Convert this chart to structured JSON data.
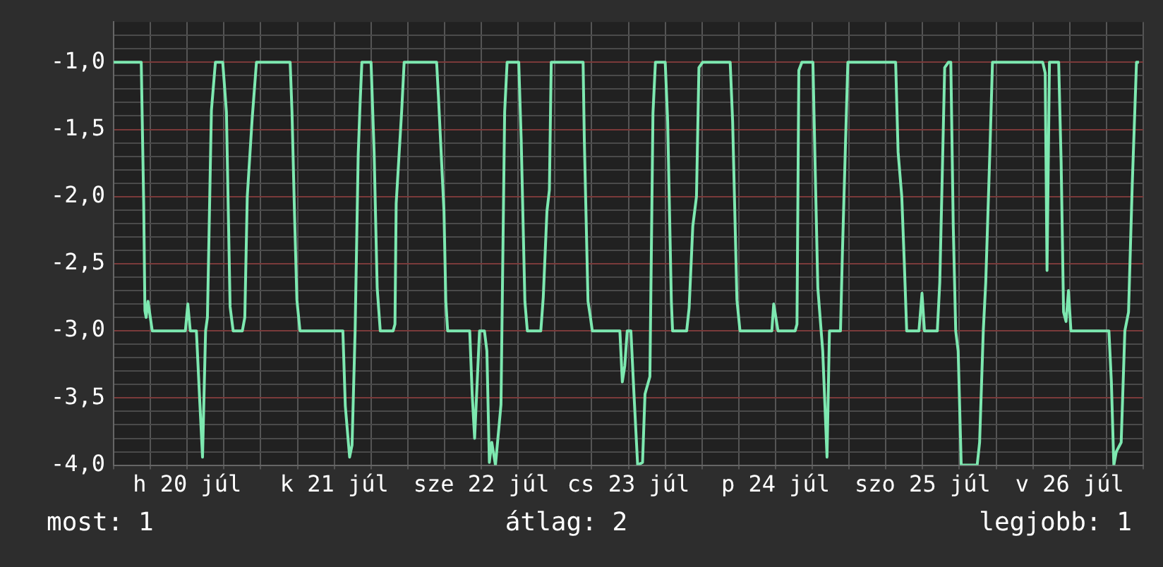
{
  "chart_data": {
    "type": "line",
    "marker": "none",
    "line_style": "solid",
    "grid": true,
    "legend": false,
    "xlim": [
      "--07-20T00:00",
      "--07-27T00:00"
    ],
    "xticks": [
      {
        "value": "--07-20T00:00",
        "label": null
      },
      {
        "value": "--07-20T06:00",
        "label": null
      },
      {
        "value": "--07-20T12:00",
        "label": "h 20 júl"
      },
      {
        "value": "--07-20T18:00",
        "label": null
      },
      {
        "value": "--07-21T00:00",
        "label": null
      },
      {
        "value": "--07-21T06:00",
        "label": null
      },
      {
        "value": "--07-21T12:00",
        "label": "k 21 júl"
      },
      {
        "value": "--07-21T18:00",
        "label": null
      },
      {
        "value": "--07-22T00:00",
        "label": null
      },
      {
        "value": "--07-22T06:00",
        "label": null
      },
      {
        "value": "--07-22T12:00",
        "label": "sze 22 júl"
      },
      {
        "value": "--07-22T18:00",
        "label": null
      },
      {
        "value": "--07-23T00:00",
        "label": null
      },
      {
        "value": "--07-23T06:00",
        "label": null
      },
      {
        "value": "--07-23T12:00",
        "label": "cs 23 júl"
      },
      {
        "value": "--07-23T18:00",
        "label": null
      },
      {
        "value": "--07-24T00:00",
        "label": null
      },
      {
        "value": "--07-24T06:00",
        "label": null
      },
      {
        "value": "--07-24T12:00",
        "label": "p 24 júl"
      },
      {
        "value": "--07-24T18:00",
        "label": null
      },
      {
        "value": "--07-25T00:00",
        "label": null
      },
      {
        "value": "--07-25T06:00",
        "label": null
      },
      {
        "value": "--07-25T12:00",
        "label": "szo 25 júl"
      },
      {
        "value": "--07-25T18:00",
        "label": null
      },
      {
        "value": "--07-26T00:00",
        "label": null
      },
      {
        "value": "--07-26T06:00",
        "label": null
      },
      {
        "value": "--07-26T12:00",
        "label": "v 26 júl"
      },
      {
        "value": "--07-26T18:00",
        "label": null
      },
      {
        "value": "--07-27T00:00",
        "label": null
      }
    ],
    "ylim": [
      -4,
      -0.7
    ],
    "yticks": [
      {
        "value": -4,
        "label": "-4,0"
      },
      {
        "value": -3.9,
        "label": null
      },
      {
        "value": -3.8,
        "label": null
      },
      {
        "value": -3.7,
        "label": null
      },
      {
        "value": -3.6,
        "label": null
      },
      {
        "value": -3.5,
        "label": "-3,5"
      },
      {
        "value": -3.4,
        "label": null
      },
      {
        "value": -3.3,
        "label": null
      },
      {
        "value": -3.2,
        "label": null
      },
      {
        "value": -3.1,
        "label": null
      },
      {
        "value": -3,
        "label": "-3,0"
      },
      {
        "value": -2.9,
        "label": null
      },
      {
        "value": -2.8,
        "label": null
      },
      {
        "value": -2.7,
        "label": null
      },
      {
        "value": -2.6,
        "label": null
      },
      {
        "value": -2.5,
        "label": "-2,5"
      },
      {
        "value": -2.4,
        "label": null
      },
      {
        "value": -2.3,
        "label": null
      },
      {
        "value": -2.2,
        "label": null
      },
      {
        "value": -2.1,
        "label": null
      },
      {
        "value": -2,
        "label": "-2,0"
      },
      {
        "value": -1.9,
        "label": null
      },
      {
        "value": -1.8,
        "label": null
      },
      {
        "value": -1.7,
        "label": null
      },
      {
        "value": -1.6,
        "label": null
      },
      {
        "value": -1.5,
        "label": "-1,5"
      },
      {
        "value": -1.4,
        "label": null
      },
      {
        "value": -1.3,
        "label": null
      },
      {
        "value": -1.2,
        "label": null
      },
      {
        "value": -1.1,
        "label": null
      },
      {
        "value": -1,
        "label": "-1,0"
      },
      {
        "value": -0.9,
        "label": null
      },
      {
        "value": -0.8,
        "label": null
      }
    ],
    "x": [
      "--07-20T00:00",
      "--07-20T04:30",
      "--07-20T04:54",
      "--07-20T05:06",
      "--07-20T05:18",
      "--07-20T05:36",
      "--07-20T06:18",
      "--07-20T11:42",
      "--07-20T12:06",
      "--07-20T12:30",
      "--07-20T13:30",
      "--07-20T14:00",
      "--07-20T14:30",
      "--07-20T15:00",
      "--07-20T15:18",
      "--07-20T15:57",
      "--07-20T16:36",
      "--07-20T17:48",
      "--07-20T18:24",
      "--07-20T19:00",
      "--07-20T19:30",
      "--07-20T21:00",
      "--07-20T21:24",
      "--07-20T21:48",
      "--07-20T22:36",
      "--07-20T23:18",
      "--07-21T04:48",
      "--07-21T05:06",
      "--07-21T05:30",
      "--07-21T05:54",
      "--07-21T06:24",
      "--07-21T13:24",
      "--07-21T13:48",
      "--07-21T14:30",
      "--07-21T14:54",
      "--07-21T15:24",
      "--07-21T15:54",
      "--07-21T16:12",
      "--07-21T16:30",
      "--07-21T18:00",
      "--07-21T18:30",
      "--07-21T19:00",
      "--07-21T19:30",
      "--07-21T21:36",
      "--07-21T21:54",
      "--07-21T22:06",
      "--07-21T23:00",
      "--07-21T23:24",
      "--07-22T04:42",
      "--07-22T05:00",
      "--07-22T05:54",
      "--07-22T06:12",
      "--07-22T06:30",
      "--07-22T10:06",
      "--07-22T10:30",
      "--07-22T10:54",
      "--07-22T11:42",
      "--07-22T12:30",
      "--07-22T12:54",
      "--07-22T13:18",
      "--07-22T13:42",
      "--07-22T14:18",
      "--07-22T15:12",
      "--07-22T15:48",
      "--07-22T16:12",
      "--07-22T18:06",
      "--07-22T18:30",
      "--07-22T19:06",
      "--07-22T19:30",
      "--07-22T21:42",
      "--07-22T22:06",
      "--07-22T22:42",
      "--07-22T23:06",
      "--07-22T23:24",
      "--07-23T04:36",
      "--07-23T04:48",
      "--07-23T05:24",
      "--07-23T05:48",
      "--07-23T06:06",
      "--07-23T10:36",
      "--07-23T11:00",
      "--07-23T11:24",
      "--07-23T11:48",
      "--07-23T12:24",
      "--07-23T12:54",
      "--07-23T13:30",
      "--07-23T14:18",
      "--07-23T14:42",
      "--07-23T15:30",
      "--07-23T16:00",
      "--07-23T16:24",
      "--07-23T18:00",
      "--07-23T18:24",
      "--07-23T19:00",
      "--07-23T19:12",
      "--07-23T21:30",
      "--07-23T21:54",
      "--07-23T22:30",
      "--07-23T23:06",
      "--07-23T23:30",
      "--07-24T00:06",
      "--07-24T04:36",
      "--07-24T05:00",
      "--07-24T05:42",
      "--07-24T06:12",
      "--07-24T11:24",
      "--07-24T11:42",
      "--07-24T12:24",
      "--07-24T15:12",
      "--07-24T15:30",
      "--07-24T15:48",
      "--07-24T16:18",
      "--07-24T18:06",
      "--07-24T18:30",
      "--07-24T18:54",
      "--07-24T19:42",
      "--07-24T20:24",
      "--07-24T20:48",
      "--07-24T22:36",
      "--07-24T22:54",
      "--07-24T23:24",
      "--07-24T23:48",
      "--07-25T07:36",
      "--07-25T08:00",
      "--07-25T08:36",
      "--07-25T09:00",
      "--07-25T09:24",
      "--07-25T11:24",
      "--07-25T11:54",
      "--07-25T12:18",
      "--07-25T14:24",
      "--07-25T14:48",
      "--07-25T15:12",
      "--07-25T15:36",
      "--07-25T16:12",
      "--07-25T16:36",
      "--07-25T17:00",
      "--07-25T17:24",
      "--07-25T17:48",
      "--07-25T18:18",
      "--07-25T20:54",
      "--07-25T21:18",
      "--07-25T21:54",
      "--07-25T22:18",
      "--07-25T23:00",
      "--07-25T23:24",
      "--07-26T07:36",
      "--07-26T08:00",
      "--07-26T08:18",
      "--07-26T08:42",
      "--07-26T10:12",
      "--07-26T10:36",
      "--07-26T11:00",
      "--07-26T11:24",
      "--07-26T11:48",
      "--07-26T12:12",
      "--07-26T18:24",
      "--07-26T18:48",
      "--07-26T19:12",
      "--07-26T19:36",
      "--07-26T20:24",
      "--07-26T21:00",
      "--07-26T21:36",
      "--07-26T22:12",
      "--07-26T22:54",
      "--07-26T23:18"
    ],
    "series": [
      {
        "color": "#7de8b0",
        "values": [
          -1,
          -1,
          -2.05,
          -2.85,
          -2.9,
          -2.78,
          -3,
          -3,
          -2.8,
          -3,
          -3,
          -3.48,
          -3.94,
          -3,
          -2.9,
          -1.36,
          -1,
          -1,
          -1.37,
          -2.82,
          -3,
          -3,
          -2.9,
          -2,
          -1.42,
          -1,
          -1,
          -1.37,
          -2.11,
          -2.77,
          -3,
          -3,
          -3.56,
          -3.94,
          -3.85,
          -3,
          -1.69,
          -1.32,
          -1,
          -1,
          -1.67,
          -2.68,
          -3,
          -3,
          -2.95,
          -2.05,
          -1.36,
          -1,
          -1,
          -1.26,
          -2.11,
          -2.78,
          -3,
          -3,
          -3.47,
          -3.8,
          -3,
          -3,
          -3.15,
          -3.98,
          -3.83,
          -4,
          -3.55,
          -1.37,
          -1,
          -1,
          -1.58,
          -2.78,
          -3,
          -3,
          -2.75,
          -2.11,
          -1.95,
          -1,
          -1,
          -1.58,
          -2.78,
          -2.9,
          -3,
          -3,
          -3.38,
          -3.26,
          -3,
          -3,
          -3.47,
          -4,
          -3.98,
          -3.47,
          -3.34,
          -1.38,
          -1,
          -1,
          -1.44,
          -2.78,
          -3,
          -3,
          -2.83,
          -2.22,
          -2,
          -1.04,
          -1,
          -1,
          -1.44,
          -2.77,
          -3,
          -3,
          -2.8,
          -3,
          -3,
          -2.95,
          -1.06,
          -1,
          -1,
          -1.85,
          -2.68,
          -3.15,
          -3.94,
          -3,
          -3,
          -2.44,
          -1.63,
          -1,
          -1,
          -1.67,
          -2,
          -2.48,
          -3,
          -3,
          -2.72,
          -3,
          -3,
          -2.64,
          -1.85,
          -1.04,
          -1,
          -1,
          -2.22,
          -3,
          -3.15,
          -4,
          -4,
          -3.83,
          -3,
          -2.64,
          -1.63,
          -1,
          -1,
          -1.08,
          -2.55,
          -1,
          -1,
          -1.74,
          -2.86,
          -2.93,
          -2.7,
          -3,
          -3,
          -3.38,
          -4,
          -3.9,
          -3.83,
          -3,
          -2.86,
          -1.92,
          -1,
          -1
        ]
      }
    ],
    "annotations": [
      "most: 1",
      "átlag: 2",
      "legjobb: 1"
    ]
  }
}
